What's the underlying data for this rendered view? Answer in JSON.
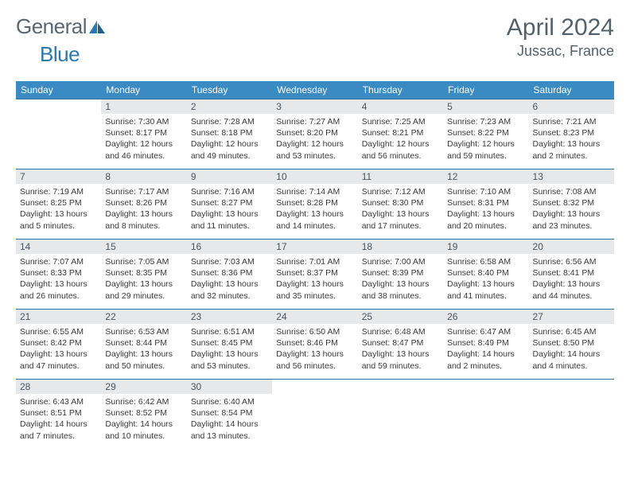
{
  "logo": {
    "word1": "General",
    "word2": "Blue"
  },
  "title": {
    "month": "April 2024",
    "location": "Jussac, France"
  },
  "colors": {
    "header_bg": "#3a8ac4",
    "header_text": "#ffffff",
    "daynum_bg": "#e7e8ea",
    "daynum_text": "#4a555f",
    "rule": "#2f6fa0",
    "title_text": "#53616b",
    "logo_gray": "#5b6770",
    "logo_blue": "#2a7ab0"
  },
  "daysOfWeek": [
    "Sunday",
    "Monday",
    "Tuesday",
    "Wednesday",
    "Thursday",
    "Friday",
    "Saturday"
  ],
  "weeks": [
    [
      {
        "num": "",
        "sunrise": "",
        "sunset": "",
        "daylight1": "",
        "daylight2": ""
      },
      {
        "num": "1",
        "sunrise": "Sunrise: 7:30 AM",
        "sunset": "Sunset: 8:17 PM",
        "daylight1": "Daylight: 12 hours",
        "daylight2": "and 46 minutes."
      },
      {
        "num": "2",
        "sunrise": "Sunrise: 7:28 AM",
        "sunset": "Sunset: 8:18 PM",
        "daylight1": "Daylight: 12 hours",
        "daylight2": "and 49 minutes."
      },
      {
        "num": "3",
        "sunrise": "Sunrise: 7:27 AM",
        "sunset": "Sunset: 8:20 PM",
        "daylight1": "Daylight: 12 hours",
        "daylight2": "and 53 minutes."
      },
      {
        "num": "4",
        "sunrise": "Sunrise: 7:25 AM",
        "sunset": "Sunset: 8:21 PM",
        "daylight1": "Daylight: 12 hours",
        "daylight2": "and 56 minutes."
      },
      {
        "num": "5",
        "sunrise": "Sunrise: 7:23 AM",
        "sunset": "Sunset: 8:22 PM",
        "daylight1": "Daylight: 12 hours",
        "daylight2": "and 59 minutes."
      },
      {
        "num": "6",
        "sunrise": "Sunrise: 7:21 AM",
        "sunset": "Sunset: 8:23 PM",
        "daylight1": "Daylight: 13 hours",
        "daylight2": "and 2 minutes."
      }
    ],
    [
      {
        "num": "7",
        "sunrise": "Sunrise: 7:19 AM",
        "sunset": "Sunset: 8:25 PM",
        "daylight1": "Daylight: 13 hours",
        "daylight2": "and 5 minutes."
      },
      {
        "num": "8",
        "sunrise": "Sunrise: 7:17 AM",
        "sunset": "Sunset: 8:26 PM",
        "daylight1": "Daylight: 13 hours",
        "daylight2": "and 8 minutes."
      },
      {
        "num": "9",
        "sunrise": "Sunrise: 7:16 AM",
        "sunset": "Sunset: 8:27 PM",
        "daylight1": "Daylight: 13 hours",
        "daylight2": "and 11 minutes."
      },
      {
        "num": "10",
        "sunrise": "Sunrise: 7:14 AM",
        "sunset": "Sunset: 8:28 PM",
        "daylight1": "Daylight: 13 hours",
        "daylight2": "and 14 minutes."
      },
      {
        "num": "11",
        "sunrise": "Sunrise: 7:12 AM",
        "sunset": "Sunset: 8:30 PM",
        "daylight1": "Daylight: 13 hours",
        "daylight2": "and 17 minutes."
      },
      {
        "num": "12",
        "sunrise": "Sunrise: 7:10 AM",
        "sunset": "Sunset: 8:31 PM",
        "daylight1": "Daylight: 13 hours",
        "daylight2": "and 20 minutes."
      },
      {
        "num": "13",
        "sunrise": "Sunrise: 7:08 AM",
        "sunset": "Sunset: 8:32 PM",
        "daylight1": "Daylight: 13 hours",
        "daylight2": "and 23 minutes."
      }
    ],
    [
      {
        "num": "14",
        "sunrise": "Sunrise: 7:07 AM",
        "sunset": "Sunset: 8:33 PM",
        "daylight1": "Daylight: 13 hours",
        "daylight2": "and 26 minutes."
      },
      {
        "num": "15",
        "sunrise": "Sunrise: 7:05 AM",
        "sunset": "Sunset: 8:35 PM",
        "daylight1": "Daylight: 13 hours",
        "daylight2": "and 29 minutes."
      },
      {
        "num": "16",
        "sunrise": "Sunrise: 7:03 AM",
        "sunset": "Sunset: 8:36 PM",
        "daylight1": "Daylight: 13 hours",
        "daylight2": "and 32 minutes."
      },
      {
        "num": "17",
        "sunrise": "Sunrise: 7:01 AM",
        "sunset": "Sunset: 8:37 PM",
        "daylight1": "Daylight: 13 hours",
        "daylight2": "and 35 minutes."
      },
      {
        "num": "18",
        "sunrise": "Sunrise: 7:00 AM",
        "sunset": "Sunset: 8:39 PM",
        "daylight1": "Daylight: 13 hours",
        "daylight2": "and 38 minutes."
      },
      {
        "num": "19",
        "sunrise": "Sunrise: 6:58 AM",
        "sunset": "Sunset: 8:40 PM",
        "daylight1": "Daylight: 13 hours",
        "daylight2": "and 41 minutes."
      },
      {
        "num": "20",
        "sunrise": "Sunrise: 6:56 AM",
        "sunset": "Sunset: 8:41 PM",
        "daylight1": "Daylight: 13 hours",
        "daylight2": "and 44 minutes."
      }
    ],
    [
      {
        "num": "21",
        "sunrise": "Sunrise: 6:55 AM",
        "sunset": "Sunset: 8:42 PM",
        "daylight1": "Daylight: 13 hours",
        "daylight2": "and 47 minutes."
      },
      {
        "num": "22",
        "sunrise": "Sunrise: 6:53 AM",
        "sunset": "Sunset: 8:44 PM",
        "daylight1": "Daylight: 13 hours",
        "daylight2": "and 50 minutes."
      },
      {
        "num": "23",
        "sunrise": "Sunrise: 6:51 AM",
        "sunset": "Sunset: 8:45 PM",
        "daylight1": "Daylight: 13 hours",
        "daylight2": "and 53 minutes."
      },
      {
        "num": "24",
        "sunrise": "Sunrise: 6:50 AM",
        "sunset": "Sunset: 8:46 PM",
        "daylight1": "Daylight: 13 hours",
        "daylight2": "and 56 minutes."
      },
      {
        "num": "25",
        "sunrise": "Sunrise: 6:48 AM",
        "sunset": "Sunset: 8:47 PM",
        "daylight1": "Daylight: 13 hours",
        "daylight2": "and 59 minutes."
      },
      {
        "num": "26",
        "sunrise": "Sunrise: 6:47 AM",
        "sunset": "Sunset: 8:49 PM",
        "daylight1": "Daylight: 14 hours",
        "daylight2": "and 2 minutes."
      },
      {
        "num": "27",
        "sunrise": "Sunrise: 6:45 AM",
        "sunset": "Sunset: 8:50 PM",
        "daylight1": "Daylight: 14 hours",
        "daylight2": "and 4 minutes."
      }
    ],
    [
      {
        "num": "28",
        "sunrise": "Sunrise: 6:43 AM",
        "sunset": "Sunset: 8:51 PM",
        "daylight1": "Daylight: 14 hours",
        "daylight2": "and 7 minutes."
      },
      {
        "num": "29",
        "sunrise": "Sunrise: 6:42 AM",
        "sunset": "Sunset: 8:52 PM",
        "daylight1": "Daylight: 14 hours",
        "daylight2": "and 10 minutes."
      },
      {
        "num": "30",
        "sunrise": "Sunrise: 6:40 AM",
        "sunset": "Sunset: 8:54 PM",
        "daylight1": "Daylight: 14 hours",
        "daylight2": "and 13 minutes."
      },
      {
        "num": "",
        "sunrise": "",
        "sunset": "",
        "daylight1": "",
        "daylight2": ""
      },
      {
        "num": "",
        "sunrise": "",
        "sunset": "",
        "daylight1": "",
        "daylight2": ""
      },
      {
        "num": "",
        "sunrise": "",
        "sunset": "",
        "daylight1": "",
        "daylight2": ""
      },
      {
        "num": "",
        "sunrise": "",
        "sunset": "",
        "daylight1": "",
        "daylight2": ""
      }
    ]
  ]
}
